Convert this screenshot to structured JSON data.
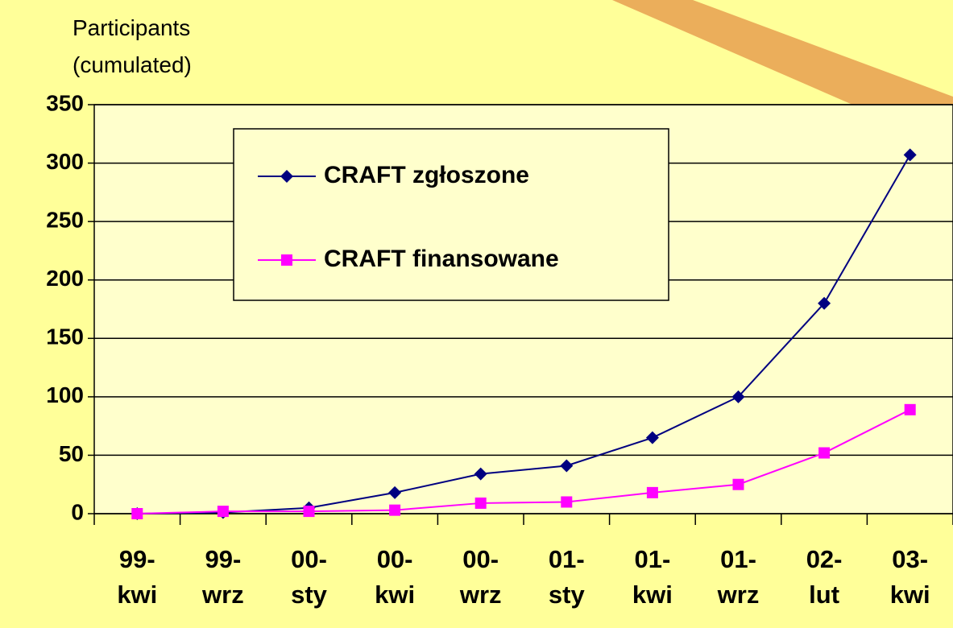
{
  "chart_data": {
    "type": "line",
    "y_label": "Participants (cumulated)",
    "categories": [
      "99-kwi",
      "99-wrz",
      "00-sty",
      "00-kwi",
      "00-wrz",
      "01-sty",
      "01-kwi",
      "01-wrz",
      "02-lut",
      "03-kwi"
    ],
    "series": [
      {
        "name": "CRAFT zgłoszone",
        "color": "#000080",
        "marker": "diamond",
        "values": [
          0,
          1,
          5,
          18,
          34,
          41,
          65,
          100,
          180,
          307
        ]
      },
      {
        "name": "CRAFT finansowane",
        "color": "#ff00ff",
        "marker": "square",
        "values": [
          0,
          2,
          2,
          3,
          9,
          10,
          18,
          25,
          52,
          89
        ]
      }
    ],
    "ylim": [
      0,
      350
    ],
    "yticks": [
      0,
      50,
      100,
      150,
      200,
      250,
      300,
      350
    ],
    "grid": true
  }
}
